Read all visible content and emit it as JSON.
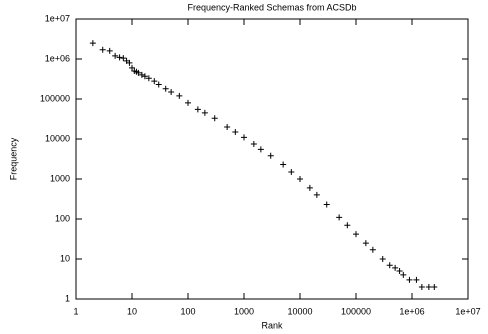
{
  "chart_data": {
    "type": "scatter",
    "title": "Frequency-Ranked Schemas from ACSDb",
    "x_label": "Rank",
    "y_label": "Frequency",
    "log_x": true,
    "log_y": true,
    "color": "#000000",
    "xlim": [
      1,
      10000000
    ],
    "xticks": [
      1,
      10,
      100,
      1000,
      10000,
      100000,
      {
        "value": 1000000,
        "label": "1e+06"
      },
      {
        "value": 10000000,
        "label": "1e+07"
      }
    ],
    "ylim": [
      1,
      10000000
    ],
    "yticks": [
      1,
      10,
      100,
      1000,
      10000,
      100000,
      {
        "value": 1000000,
        "label": "1e+06"
      },
      {
        "value": 10000000,
        "label": "1e+07"
      }
    ],
    "x": [
      2,
      3,
      4,
      5,
      6,
      7,
      8,
      9,
      10,
      11,
      12,
      13,
      15,
      17,
      20,
      25,
      30,
      40,
      50,
      70,
      100,
      150,
      200,
      300,
      500,
      700,
      1000,
      1500,
      2000,
      3000,
      5000,
      7000,
      10000,
      15000,
      20000,
      30000,
      50000,
      70000,
      100000,
      150000,
      200000,
      300000,
      400000,
      500000,
      600000,
      700000,
      900000,
      1200000,
      1500000,
      2000000,
      2500000
    ],
    "y": [
      2500000,
      1700000,
      1600000,
      1200000,
      1100000,
      1050000,
      900000,
      800000,
      600000,
      500000,
      480000,
      450000,
      400000,
      370000,
      330000,
      280000,
      230000,
      180000,
      150000,
      120000,
      80000,
      55000,
      45000,
      33000,
      20000,
      15000,
      11000,
      7500,
      5500,
      3800,
      2300,
      1500,
      1000,
      600,
      400,
      230,
      110,
      70,
      42,
      25,
      17,
      10,
      7,
      6,
      5,
      4,
      3,
      3,
      2,
      2,
      2
    ]
  }
}
